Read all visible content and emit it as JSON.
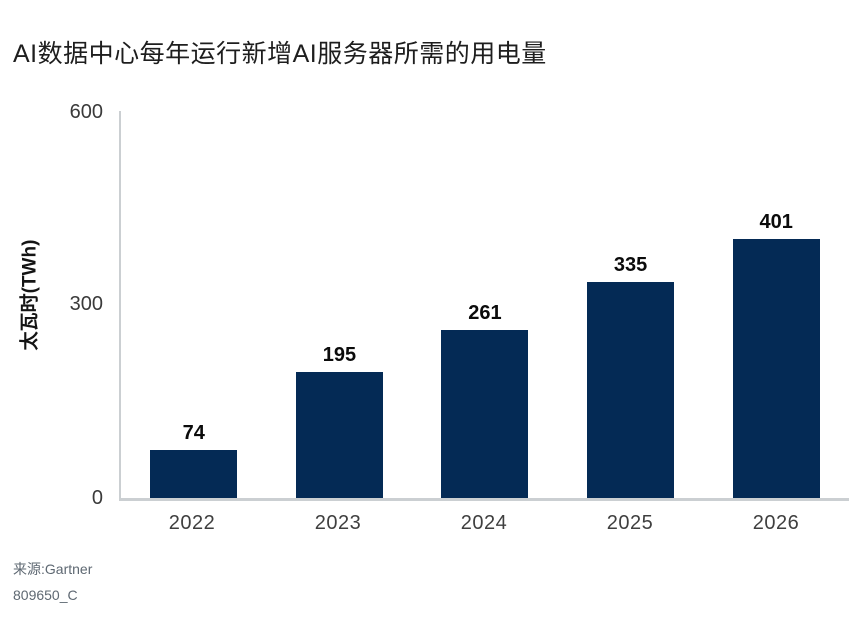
{
  "page": {
    "background_color": "#ffffff"
  },
  "chart_data": {
    "type": "bar",
    "title": "AI数据中心每年运行新增AI服务器所需的用电量",
    "ylabel": "太瓦时(TWh)",
    "xlabel": "",
    "categories": [
      "2022",
      "2023",
      "2024",
      "2025",
      "2026"
    ],
    "values": [
      74,
      195,
      261,
      335,
      401
    ],
    "ylim": [
      0,
      600
    ],
    "yticks": [
      0,
      300,
      600
    ],
    "grid": false,
    "legend": "none",
    "bar_color": "#042a55",
    "axis_color": "#cbcfd2",
    "value_label_color": "#0b0b0b",
    "tick_label_color": "#3a3a3a"
  },
  "source": {
    "line1": "来源:Gartner",
    "line2": "809650_C"
  }
}
